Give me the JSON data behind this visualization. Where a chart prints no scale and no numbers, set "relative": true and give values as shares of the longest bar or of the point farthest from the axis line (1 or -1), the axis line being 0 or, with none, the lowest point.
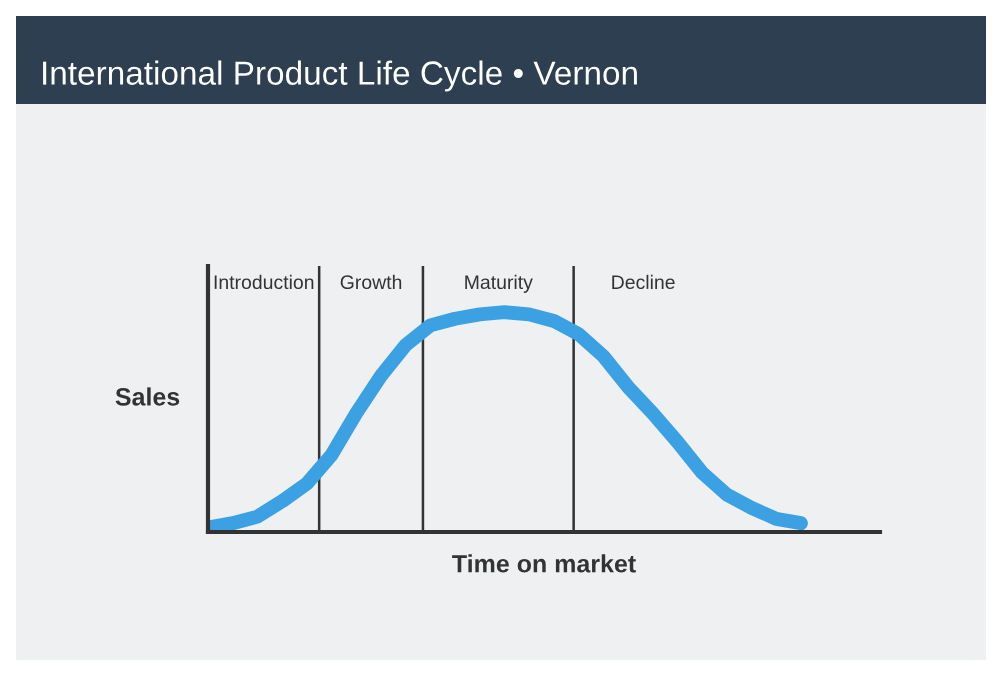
{
  "chart_data": {
    "type": "line",
    "title": "International Product Life Cycle • Vernon",
    "xlabel": "Time on market",
    "ylabel": "Sales",
    "relative": true,
    "categories": [
      null,
      null,
      null,
      null,
      null,
      null,
      null,
      null,
      null,
      null,
      null,
      null,
      null,
      null,
      null,
      null,
      null,
      null,
      null,
      null,
      null,
      null,
      null,
      null,
      null
    ],
    "series": [
      {
        "color": "#3ba1e2",
        "values": [
          0.02,
          0.04,
          0.07,
          0.14,
          0.22,
          0.35,
          0.54,
          0.71,
          0.85,
          0.94,
          0.97,
          0.99,
          1.0,
          0.99,
          0.96,
          0.9,
          0.8,
          0.66,
          0.54,
          0.41,
          0.27,
          0.17,
          0.11,
          0.06,
          0.04
        ]
      }
    ],
    "annotations": [
      "Introduction",
      "Growth",
      "Maturity",
      "Decline"
    ],
    "legend": false,
    "marker": "none",
    "line_style": "solid"
  }
}
